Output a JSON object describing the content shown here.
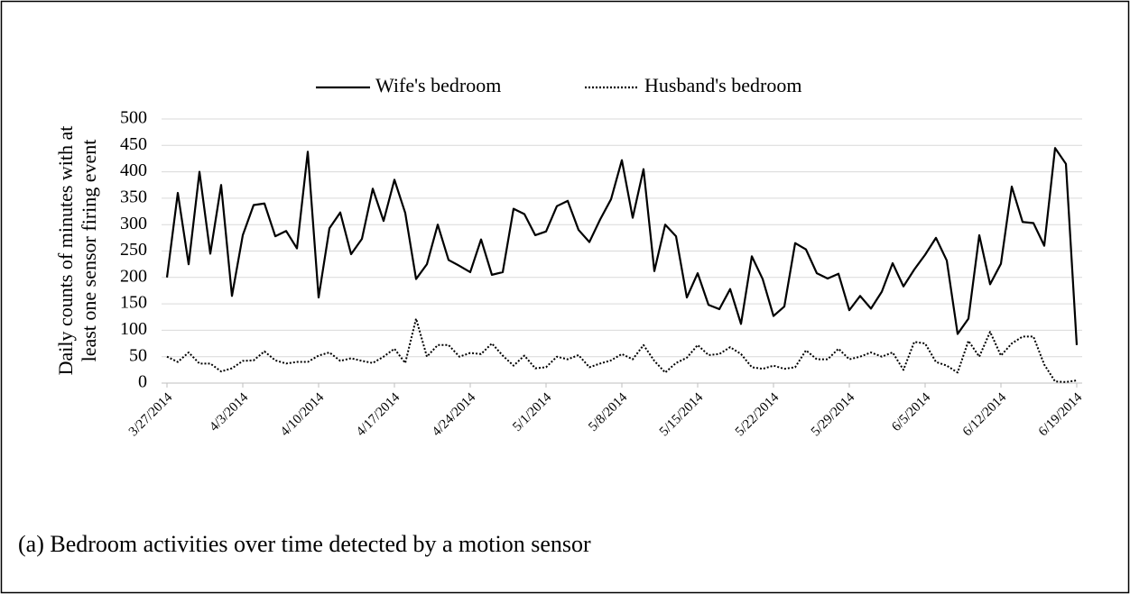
{
  "chart_data": {
    "type": "line",
    "y_label": [
      "Daily counts of minutes with at",
      "least one sensor firing event"
    ],
    "caption": "(a)  Bedroom activities over time detected by a motion sensor",
    "categories": [
      "3/27/2014",
      null,
      null,
      null,
      null,
      null,
      null,
      "4/3/2014",
      null,
      null,
      null,
      null,
      null,
      null,
      "4/10/2014",
      null,
      null,
      null,
      null,
      null,
      null,
      "4/17/2014",
      null,
      null,
      null,
      null,
      null,
      null,
      "4/24/2014",
      null,
      null,
      null,
      null,
      null,
      null,
      "5/1/2014",
      null,
      null,
      null,
      null,
      null,
      null,
      "5/8/2014",
      null,
      null,
      null,
      null,
      null,
      null,
      "5/15/2014",
      null,
      null,
      null,
      null,
      null,
      null,
      "5/22/2014",
      null,
      null,
      null,
      null,
      null,
      null,
      "5/29/2014",
      null,
      null,
      null,
      null,
      null,
      null,
      "6/5/2014",
      null,
      null,
      null,
      null,
      null,
      null,
      "6/12/2014",
      null,
      null,
      null,
      null,
      null,
      null,
      "6/19/2014"
    ],
    "series": [
      {
        "name": "Wife's bedroom",
        "color": "#000000",
        "dash": "solid",
        "values": [
          200,
          360,
          225,
          400,
          245,
          375,
          165,
          280,
          337,
          340,
          278,
          288,
          255,
          438,
          162,
          293,
          323,
          244,
          273,
          368,
          307,
          385,
          322,
          197,
          225,
          300,
          233,
          222,
          210,
          272,
          205,
          210,
          330,
          320,
          280,
          287,
          335,
          345,
          290,
          267,
          310,
          348,
          422,
          313,
          405,
          212,
          300,
          278,
          162,
          208,
          148,
          140,
          178,
          112,
          240,
          197,
          127,
          145,
          265,
          253,
          208,
          198,
          207,
          138,
          165,
          141,
          173,
          227,
          183,
          215,
          243,
          275,
          232,
          93,
          122,
          280,
          187,
          226,
          372,
          305,
          303,
          260,
          445,
          415,
          72
        ]
      },
      {
        "name": "Husband's bedroom",
        "color": "#000000",
        "dash": "dotted",
        "values": [
          50,
          40,
          58,
          37,
          37,
          22,
          28,
          42,
          43,
          60,
          43,
          37,
          40,
          40,
          52,
          58,
          42,
          47,
          42,
          38,
          50,
          65,
          38,
          122,
          50,
          72,
          72,
          50,
          57,
          55,
          75,
          52,
          33,
          52,
          28,
          30,
          50,
          45,
          53,
          30,
          37,
          43,
          55,
          45,
          72,
          42,
          20,
          38,
          48,
          72,
          53,
          55,
          68,
          55,
          30,
          27,
          33,
          27,
          30,
          62,
          45,
          45,
          65,
          45,
          50,
          58,
          50,
          58,
          25,
          78,
          75,
          40,
          33,
          20,
          80,
          50,
          97,
          52,
          75,
          88,
          88,
          35,
          3,
          2,
          5
        ]
      }
    ],
    "ylim": [
      0,
      500
    ],
    "yticks": [
      0,
      50,
      100,
      150,
      200,
      250,
      300,
      350,
      400,
      450,
      500
    ],
    "grid": true,
    "legend": "top"
  }
}
